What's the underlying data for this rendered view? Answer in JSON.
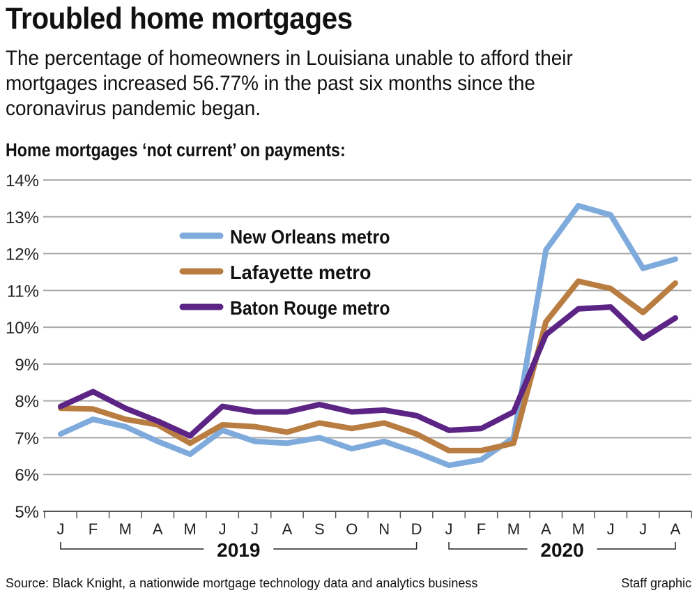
{
  "title": "Troubled home mortgages",
  "subtitle": "The percentage of homeowners in Louisiana unable to afford their mortgages increased 56.77% in the past six months since the coronavirus pandemic began.",
  "chart_label": "Home mortgages ‘not current’ on payments:",
  "source": "Source: Black Knight, a nationwide mortgage technology data and analytics business",
  "credit": "Staff graphic",
  "chart_data": {
    "type": "line",
    "ylim": [
      5,
      14
    ],
    "yticks": [
      "5%",
      "6%",
      "7%",
      "8%",
      "9%",
      "10%",
      "11%",
      "12%",
      "13%",
      "14%"
    ],
    "grid": true,
    "legend": "top-center",
    "categories": [
      "J",
      "F",
      "M",
      "A",
      "M",
      "J",
      "J",
      "A",
      "S",
      "O",
      "N",
      "D",
      "J",
      "F",
      "M",
      "A",
      "M",
      "J",
      "J",
      "A"
    ],
    "year_groups": [
      {
        "label": "2019",
        "from": 0,
        "to": 11
      },
      {
        "label": "2020",
        "from": 12,
        "to": 19
      }
    ],
    "series": [
      {
        "name": "New Orleans metro",
        "color": "#7fabdc",
        "values": [
          7.1,
          7.5,
          7.3,
          6.9,
          6.55,
          7.2,
          6.9,
          6.85,
          7.0,
          6.7,
          6.9,
          6.6,
          6.25,
          6.4,
          7.0,
          12.1,
          13.3,
          13.05,
          11.6,
          11.85
        ]
      },
      {
        "name": "Lafayette metro",
        "color": "#b97d42",
        "values": [
          7.8,
          7.78,
          7.5,
          7.35,
          6.85,
          7.35,
          7.3,
          7.15,
          7.4,
          7.25,
          7.4,
          7.1,
          6.65,
          6.65,
          6.85,
          10.15,
          11.25,
          11.05,
          10.4,
          11.2
        ]
      },
      {
        "name": "Baton Rouge metro",
        "color": "#5b2485",
        "values": [
          7.85,
          8.25,
          7.8,
          7.45,
          7.05,
          7.85,
          7.7,
          7.7,
          7.9,
          7.7,
          7.75,
          7.6,
          7.2,
          7.25,
          7.7,
          9.8,
          10.5,
          10.55,
          9.7,
          10.25
        ]
      }
    ]
  }
}
